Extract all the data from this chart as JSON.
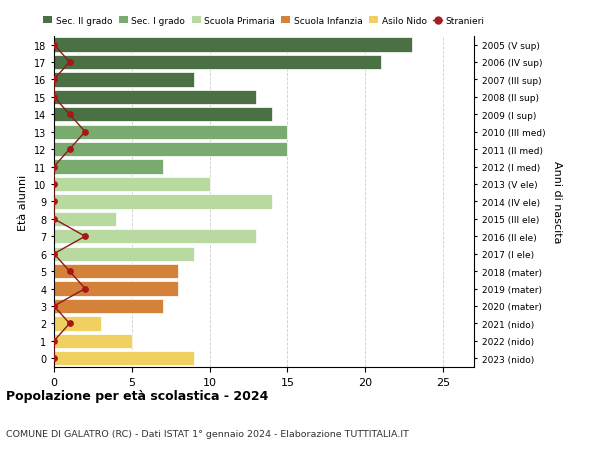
{
  "ages": [
    18,
    17,
    16,
    15,
    14,
    13,
    12,
    11,
    10,
    9,
    8,
    7,
    6,
    5,
    4,
    3,
    2,
    1,
    0
  ],
  "years": [
    "2005 (V sup)",
    "2006 (IV sup)",
    "2007 (III sup)",
    "2008 (II sup)",
    "2009 (I sup)",
    "2010 (III med)",
    "2011 (II med)",
    "2012 (I med)",
    "2013 (V ele)",
    "2014 (IV ele)",
    "2015 (III ele)",
    "2016 (II ele)",
    "2017 (I ele)",
    "2018 (mater)",
    "2019 (mater)",
    "2020 (mater)",
    "2021 (nido)",
    "2022 (nido)",
    "2023 (nido)"
  ],
  "bar_values": [
    23,
    21,
    9,
    13,
    14,
    15,
    15,
    7,
    10,
    14,
    4,
    13,
    9,
    8,
    8,
    7,
    3,
    5,
    9
  ],
  "bar_colors": [
    "#4a7044",
    "#4a7044",
    "#4a7044",
    "#4a7044",
    "#4a7044",
    "#7aab6e",
    "#7aab6e",
    "#7aab6e",
    "#b8d9a0",
    "#b8d9a0",
    "#b8d9a0",
    "#b8d9a0",
    "#b8d9a0",
    "#d4823a",
    "#d4823a",
    "#d4823a",
    "#f0d060",
    "#f0d060",
    "#f0d060"
  ],
  "stranieri_x": [
    0,
    1,
    0,
    0,
    1,
    2,
    1,
    0,
    0,
    0,
    0,
    2,
    0,
    1,
    2,
    0,
    1,
    0,
    0
  ],
  "legend_labels": [
    "Sec. II grado",
    "Sec. I grado",
    "Scuola Primaria",
    "Scuola Infanzia",
    "Asilo Nido",
    "Stranieri"
  ],
  "legend_colors": [
    "#4a7044",
    "#7aab6e",
    "#b8d9a0",
    "#d4823a",
    "#f0d060",
    "#a02020"
  ],
  "title": "Popolazione per età scolastica - 2024",
  "subtitle": "COMUNE DI GALATRO (RC) - Dati ISTAT 1° gennaio 2024 - Elaborazione TUTTITALIA.IT",
  "ylabel_left": "Età alunni",
  "ylabel_right": "Anni di nascita",
  "xlim_max": 27,
  "background_color": "#ffffff",
  "grid_color": "#cccccc",
  "bar_height": 0.82
}
